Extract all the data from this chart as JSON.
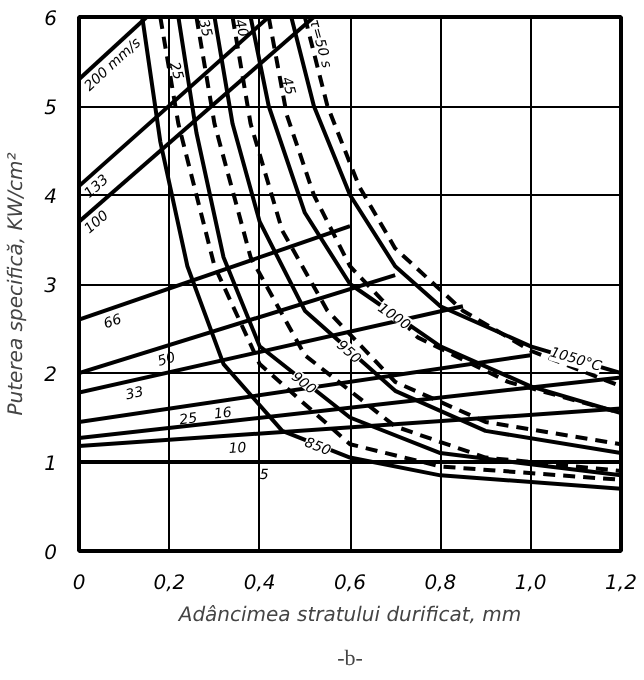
{
  "chart_data": {
    "type": "line",
    "xlabel": "Adâncimea stratului durificat, mm",
    "ylabel": "Puterea specifică, KW/cm²",
    "annotations": [
      "-b-"
    ],
    "xlim": [
      0,
      1.2
    ],
    "ylim": [
      0,
      6
    ],
    "xticks": [
      0,
      {
        "value": 0.2,
        "label": "0,2"
      },
      {
        "value": 0.4,
        "label": "0,4"
      },
      {
        "value": 0.6,
        "label": "0,6"
      },
      {
        "value": 0.8,
        "label": "0,8"
      },
      {
        "value": 1.0,
        "label": "1,0"
      },
      {
        "value": 1.2,
        "label": "1,2"
      }
    ],
    "yticks": [
      0,
      1,
      2,
      3,
      4,
      5,
      6
    ],
    "grid": true,
    "marker": "none",
    "series": [
      {
        "name": "200 mm/s",
        "color": "#000000",
        "x": [
          0,
          0.15
        ],
        "values": [
          5.3,
          6
        ]
      },
      {
        "name": "133",
        "color": "#000000",
        "x": [
          0,
          0.42
        ],
        "values": [
          4.1,
          6
        ]
      },
      {
        "name": "100",
        "color": "#000000",
        "x": [
          0,
          0.52
        ],
        "values": [
          3.7,
          6
        ]
      },
      {
        "name": "66",
        "color": "#000000",
        "x": [
          0,
          0.6
        ],
        "values": [
          2.6,
          3.65
        ]
      },
      {
        "name": "50",
        "color": "#000000",
        "x": [
          0,
          0.7
        ],
        "values": [
          2.0,
          3.1
        ]
      },
      {
        "name": "33",
        "color": "#000000",
        "x": [
          0,
          0.85
        ],
        "values": [
          1.78,
          2.75
        ]
      },
      {
        "name": "25",
        "color": "#000000",
        "x": [
          0,
          1.0
        ],
        "values": [
          1.45,
          2.2
        ]
      },
      {
        "name": "16",
        "color": "#000000",
        "x": [
          0,
          1.2
        ],
        "values": [
          1.27,
          1.95
        ]
      },
      {
        "name": "10",
        "color": "#000000",
        "x": [
          0,
          1.2
        ],
        "values": [
          1.18,
          1.6
        ]
      },
      {
        "name": "5",
        "color": "#000000",
        "x": [
          0,
          1.2
        ],
        "values": [
          1.0,
          1.0
        ]
      },
      {
        "name": "850",
        "color": "#000000",
        "x": [
          0.14,
          0.18,
          0.24,
          0.32,
          0.45,
          0.6,
          0.8,
          1.2
        ],
        "values": [
          6,
          4.6,
          3.2,
          2.1,
          1.35,
          1.05,
          0.85,
          0.7
        ]
      },
      {
        "name": "900",
        "color": "#000000",
        "x": [
          0.22,
          0.26,
          0.32,
          0.4,
          0.6,
          0.8,
          1.2
        ],
        "values": [
          6,
          4.7,
          3.3,
          2.3,
          1.5,
          1.1,
          0.85
        ]
      },
      {
        "name": "950",
        "color": "#000000",
        "x": [
          0.3,
          0.34,
          0.4,
          0.5,
          0.7,
          0.9,
          1.2
        ],
        "values": [
          6,
          4.8,
          3.7,
          2.7,
          1.8,
          1.35,
          1.1
        ]
      },
      {
        "name": "1000",
        "color": "#000000",
        "x": [
          0.38,
          0.42,
          0.5,
          0.6,
          0.8,
          1.0,
          1.2
        ],
        "values": [
          6,
          5,
          3.8,
          3.0,
          2.3,
          1.85,
          1.55
        ]
      },
      {
        "name": "1050°C",
        "color": "#000000",
        "x": [
          0.47,
          0.52,
          0.6,
          0.7,
          0.8,
          1.0,
          1.2
        ],
        "values": [
          6,
          5.0,
          4.0,
          3.2,
          2.75,
          2.3,
          2.0
        ]
      },
      {
        "name": "25",
        "color": "#000000",
        "line_style": "dashed",
        "x": [
          0.18,
          0.22,
          0.3,
          0.4,
          0.6,
          0.8,
          1.2
        ],
        "values": [
          6,
          4.8,
          3.2,
          2.1,
          1.2,
          0.95,
          0.8
        ]
      },
      {
        "name": "35",
        "color": "#000000",
        "line_style": "dashed",
        "x": [
          0.26,
          0.3,
          0.38,
          0.5,
          0.7,
          0.9,
          1.2
        ],
        "values": [
          6,
          4.8,
          3.3,
          2.2,
          1.4,
          1.05,
          0.9
        ]
      },
      {
        "name": "40",
        "color": "#000000",
        "line_style": "dashed",
        "x": [
          0.34,
          0.38,
          0.45,
          0.55,
          0.7,
          0.9,
          1.2
        ],
        "values": [
          6,
          4.8,
          3.6,
          2.7,
          1.9,
          1.45,
          1.2
        ]
      },
      {
        "name": "45",
        "color": "#000000",
        "line_style": "dashed",
        "x": [
          0.42,
          0.46,
          0.52,
          0.6,
          0.75,
          0.95,
          1.2
        ],
        "values": [
          6,
          4.9,
          4.0,
          3.2,
          2.4,
          1.9,
          1.55
        ]
      },
      {
        "name": "τ=50 s",
        "color": "#000000",
        "line_style": "dashed",
        "x": [
          0.5,
          0.55,
          0.62,
          0.7,
          0.85,
          1.0,
          1.2
        ],
        "values": [
          6,
          5.0,
          4.1,
          3.4,
          2.7,
          2.25,
          1.85
        ]
      }
    ]
  }
}
